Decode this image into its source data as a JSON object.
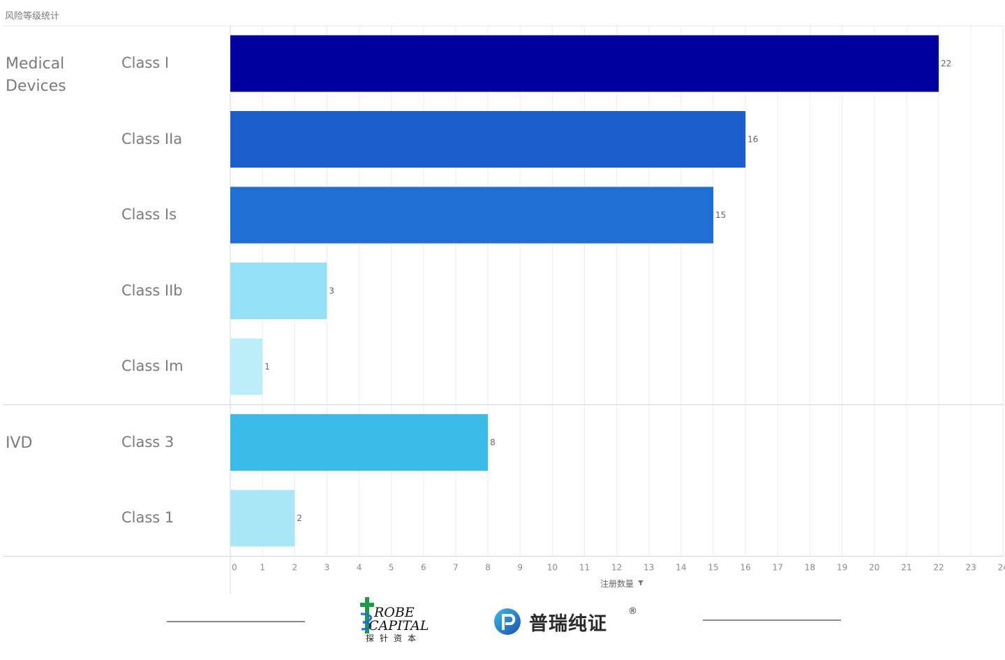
{
  "page": {
    "title": "风险等级统计"
  },
  "chart_data": {
    "type": "bar",
    "orientation": "horizontal",
    "title": "风险等级统计",
    "xlabel": "注册数量",
    "ylabel": "",
    "xlim": [
      0,
      24
    ],
    "x_ticks": [
      "0",
      "1",
      "2",
      "3",
      "4",
      "5",
      "6",
      "7",
      "8",
      "9",
      "10",
      "11",
      "12",
      "13",
      "14",
      "15",
      "16",
      "17",
      "18",
      "19",
      "20",
      "21",
      "22",
      "23",
      "24"
    ],
    "grid": true,
    "groups": [
      {
        "name": "Medical Devices",
        "label_lines": [
          "Medical",
          "Devices"
        ],
        "bars": [
          {
            "category": "Class I",
            "value": 22,
            "color": "#0000a0"
          },
          {
            "category": "Class IIa",
            "value": 16,
            "color": "#1c5fcc"
          },
          {
            "category": "Class Is",
            "value": 15,
            "color": "#1f6fd4"
          },
          {
            "category": "Class IIb",
            "value": 3,
            "color": "#95e0f4"
          },
          {
            "category": "Class Im",
            "value": 1,
            "color": "#bdedf8"
          }
        ]
      },
      {
        "name": "IVD",
        "label_lines": [
          "IVD"
        ],
        "bars": [
          {
            "category": "Class 3",
            "value": 8,
            "color": "#3cbae8"
          },
          {
            "category": "Class 1",
            "value": 2,
            "color": "#a9e6f6"
          }
        ]
      }
    ]
  },
  "footer": {
    "probe_logo": {
      "line1": "ROBE",
      "line2": "CAPITAL",
      "cn": "探针资本"
    },
    "purui_logo": {
      "text": "普瑞纯证",
      "reg": "®"
    }
  }
}
